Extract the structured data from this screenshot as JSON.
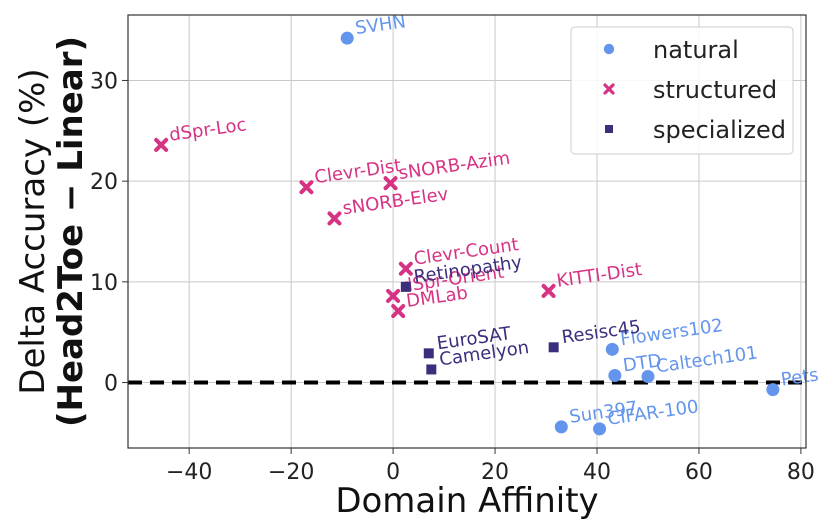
{
  "chart_data": {
    "type": "scatter",
    "xlabel": "Domain Affinity",
    "ylabel_line1": "Delta Accuracy (%)",
    "ylabel_line2": "(Head2Toe − Linear)",
    "xlim": [
      -52,
      81
    ],
    "ylim": [
      -6.5,
      36.5
    ],
    "xticks": [
      -40,
      -20,
      0,
      20,
      40,
      60,
      80
    ],
    "xtick_labels": [
      "−40",
      "−20",
      "0",
      "20",
      "40",
      "60",
      "80"
    ],
    "yticks": [
      0,
      10,
      20,
      30
    ],
    "ytick_labels": [
      "0",
      "10",
      "20",
      "30"
    ],
    "grid": true,
    "reference_line_y": 0,
    "legend_position": "top-right",
    "series": [
      {
        "name": "natural",
        "marker": "circle",
        "color": "#6495ED",
        "points": [
          {
            "label": "SVHN",
            "x": -9,
            "y": 34.2
          },
          {
            "label": "Flowers102",
            "x": 43,
            "y": 3.3
          },
          {
            "label": "DTD",
            "x": 43.5,
            "y": 0.7
          },
          {
            "label": "Caltech101",
            "x": 50,
            "y": 0.6
          },
          {
            "label": "Pets",
            "x": 74.5,
            "y": -0.7
          },
          {
            "label": "Sun397",
            "x": 33,
            "y": -4.4
          },
          {
            "label": "CIFAR-100",
            "x": 40.5,
            "y": -4.6
          }
        ]
      },
      {
        "name": "structured",
        "marker": "x",
        "color": "#D63384",
        "points": [
          {
            "label": "dSpr-Loc",
            "x": -45.5,
            "y": 23.6
          },
          {
            "label": "Clevr-Dist",
            "x": -17,
            "y": 19.4
          },
          {
            "label": "sNORB-Azim",
            "x": -0.5,
            "y": 19.8
          },
          {
            "label": "sNORB-Elev",
            "x": -11.5,
            "y": 16.3
          },
          {
            "label": "Clevr-Count",
            "x": 2.5,
            "y": 11.3
          },
          {
            "label": "dSpr-Orient",
            "x": 0,
            "y": 8.6
          },
          {
            "label": "DMLab",
            "x": 1,
            "y": 7.1
          },
          {
            "label": "KITTI-Dist",
            "x": 30.5,
            "y": 9.1
          }
        ]
      },
      {
        "name": "specialized",
        "marker": "square",
        "color": "#3B2F7D",
        "points": [
          {
            "label": "Retinopathy",
            "x": 2.5,
            "y": 9.5
          },
          {
            "label": "EuroSAT",
            "x": 7,
            "y": 2.9
          },
          {
            "label": "Camelyon",
            "x": 7.5,
            "y": 1.3
          },
          {
            "label": "Resisc45",
            "x": 31.5,
            "y": 3.5
          }
        ]
      }
    ]
  }
}
